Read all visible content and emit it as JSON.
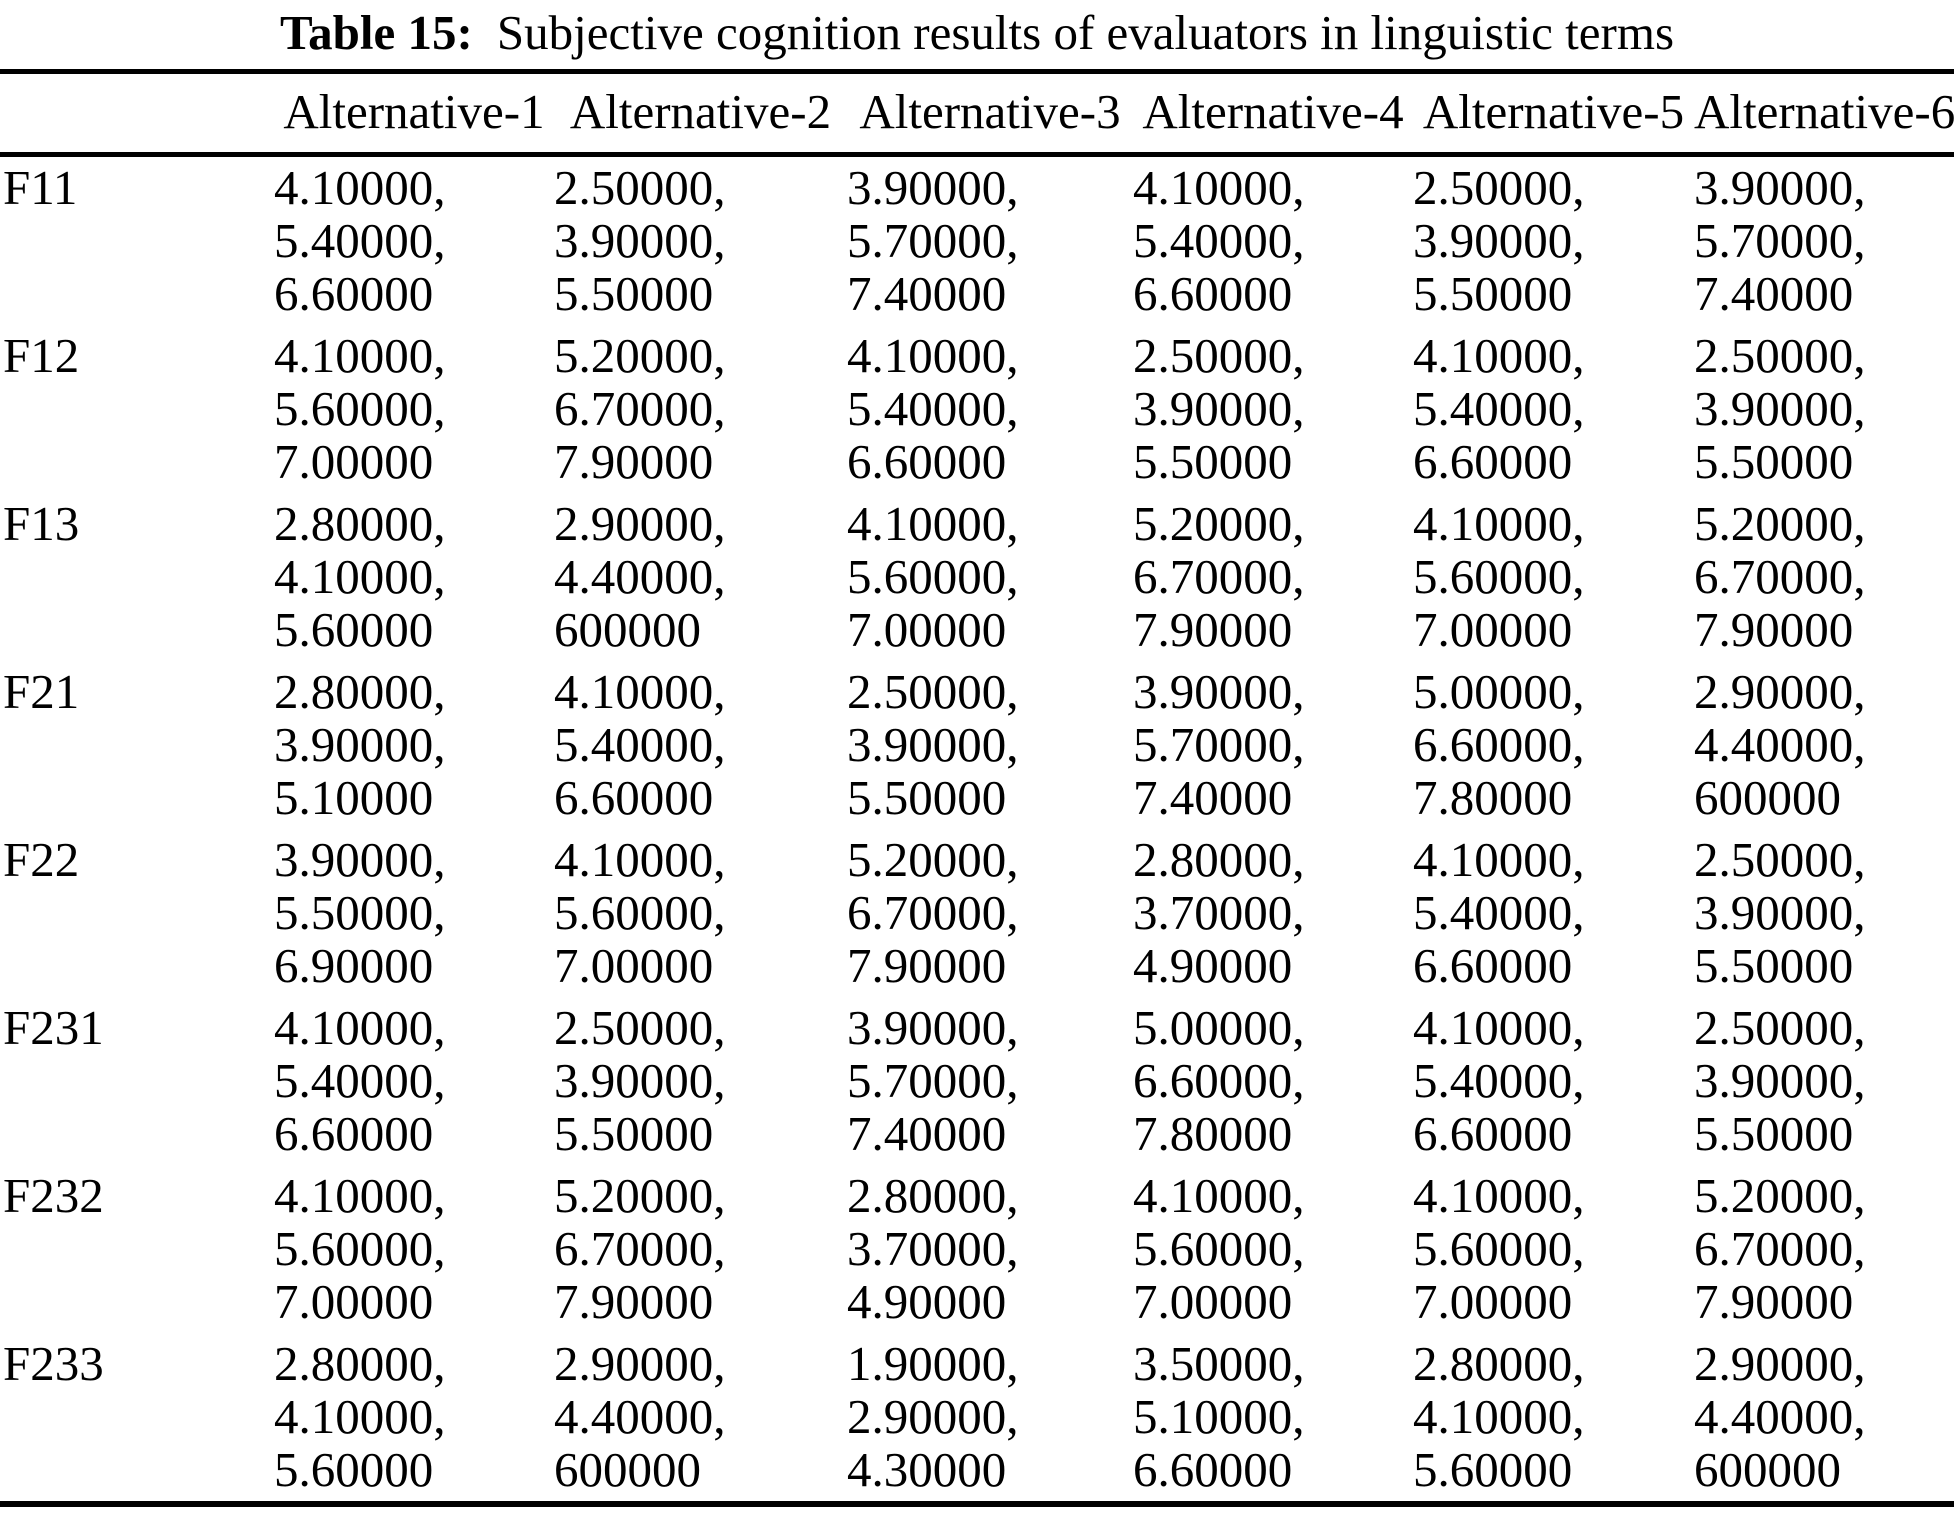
{
  "caption": {
    "label": "Table 15:",
    "text": "Subjective cognition results of evaluators in linguistic terms"
  },
  "table": {
    "corner": "",
    "columns": [
      "Alternative-1",
      "Alternative-2",
      "Alternative-3",
      "Alternative-4",
      "Alternative-5",
      "Alternative-6"
    ],
    "rows": [
      {
        "label": "F11",
        "cells": [
          [
            "4.10000,",
            "5.40000,",
            "6.60000"
          ],
          [
            "2.50000,",
            "3.90000,",
            "5.50000"
          ],
          [
            "3.90000,",
            "5.70000,",
            "7.40000"
          ],
          [
            "4.10000,",
            "5.40000,",
            "6.60000"
          ],
          [
            "2.50000,",
            "3.90000,",
            "5.50000"
          ],
          [
            "3.90000,",
            "5.70000,",
            "7.40000"
          ]
        ]
      },
      {
        "label": "F12",
        "cells": [
          [
            "4.10000,",
            "5.60000,",
            "7.00000"
          ],
          [
            "5.20000,",
            "6.70000,",
            "7.90000"
          ],
          [
            "4.10000,",
            "5.40000,",
            "6.60000"
          ],
          [
            "2.50000,",
            "3.90000,",
            "5.50000"
          ],
          [
            "4.10000,",
            "5.40000,",
            "6.60000"
          ],
          [
            "2.50000,",
            "3.90000,",
            "5.50000"
          ]
        ]
      },
      {
        "label": "F13",
        "cells": [
          [
            "2.80000,",
            "4.10000,",
            "5.60000"
          ],
          [
            "2.90000,",
            "4.40000,",
            "600000"
          ],
          [
            "4.10000,",
            "5.60000,",
            "7.00000"
          ],
          [
            "5.20000,",
            "6.70000,",
            "7.90000"
          ],
          [
            "4.10000,",
            "5.60000,",
            "7.00000"
          ],
          [
            "5.20000,",
            "6.70000,",
            "7.90000"
          ]
        ]
      },
      {
        "label": "F21",
        "cells": [
          [
            "2.80000,",
            "3.90000,",
            "5.10000"
          ],
          [
            "4.10000,",
            "5.40000,",
            "6.60000"
          ],
          [
            "2.50000,",
            "3.90000,",
            "5.50000"
          ],
          [
            "3.90000,",
            "5.70000,",
            "7.40000"
          ],
          [
            "5.00000,",
            "6.60000,",
            "7.80000"
          ],
          [
            "2.90000,",
            "4.40000,",
            "600000"
          ]
        ]
      },
      {
        "label": "F22",
        "cells": [
          [
            "3.90000,",
            "5.50000,",
            "6.90000"
          ],
          [
            "4.10000,",
            "5.60000,",
            "7.00000"
          ],
          [
            "5.20000,",
            "6.70000,",
            "7.90000"
          ],
          [
            "2.80000,",
            "3.70000,",
            "4.90000"
          ],
          [
            "4.10000,",
            "5.40000,",
            "6.60000"
          ],
          [
            "2.50000,",
            "3.90000,",
            "5.50000"
          ]
        ]
      },
      {
        "label": "F231",
        "cells": [
          [
            "4.10000,",
            "5.40000,",
            "6.60000"
          ],
          [
            "2.50000,",
            "3.90000,",
            "5.50000"
          ],
          [
            "3.90000,",
            "5.70000,",
            "7.40000"
          ],
          [
            "5.00000,",
            "6.60000,",
            "7.80000"
          ],
          [
            "4.10000,",
            "5.40000,",
            "6.60000"
          ],
          [
            "2.50000,",
            "3.90000,",
            "5.50000"
          ]
        ]
      },
      {
        "label": "F232",
        "cells": [
          [
            "4.10000,",
            "5.60000,",
            "7.00000"
          ],
          [
            "5.20000,",
            "6.70000,",
            "7.90000"
          ],
          [
            "2.80000,",
            "3.70000,",
            "4.90000"
          ],
          [
            "4.10000,",
            "5.60000,",
            "7.00000"
          ],
          [
            "4.10000,",
            "5.60000,",
            "7.00000"
          ],
          [
            "5.20000,",
            "6.70000,",
            "7.90000"
          ]
        ]
      },
      {
        "label": "F233",
        "cells": [
          [
            "2.80000,",
            "4.10000,",
            "5.60000"
          ],
          [
            "2.90000,",
            "4.40000,",
            "600000"
          ],
          [
            "1.90000,",
            "2.90000,",
            "4.30000"
          ],
          [
            "3.50000,",
            "5.10000,",
            "6.60000"
          ],
          [
            "2.80000,",
            "4.10000,",
            "5.60000"
          ],
          [
            "2.90000,",
            "4.40000,",
            "600000"
          ]
        ]
      }
    ]
  }
}
